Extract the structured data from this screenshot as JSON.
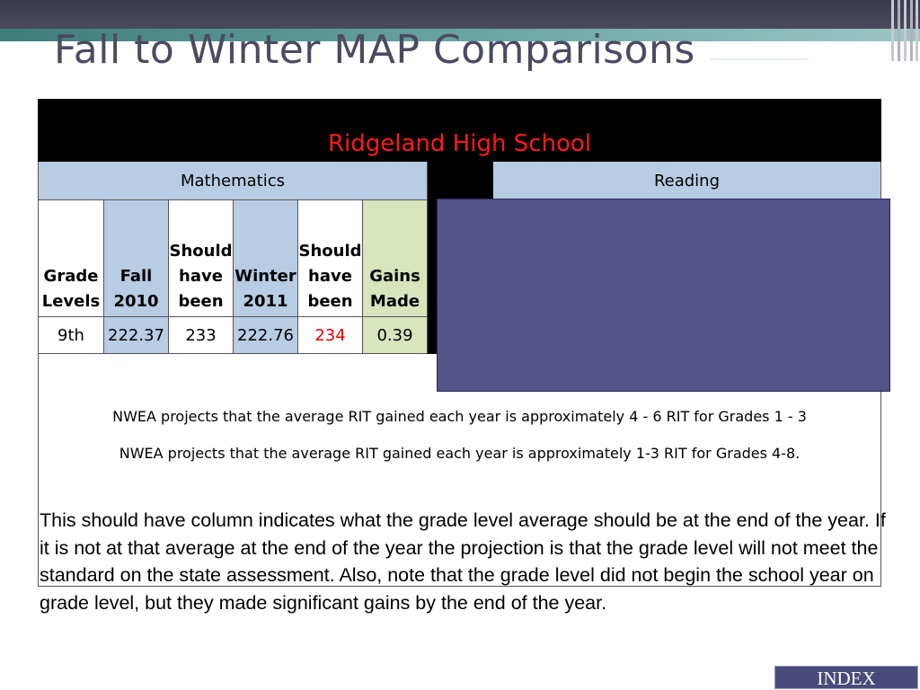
{
  "slide": {
    "title": "Fall to Winter MAP Comparisons"
  },
  "table": {
    "school": "Ridgeland High School",
    "subjects": [
      "Mathematics",
      "Reading"
    ],
    "columns": [
      [
        "Grade",
        "Levels"
      ],
      [
        "Fall",
        "2010"
      ],
      [
        "Should",
        "have",
        "been"
      ],
      [
        "Winter",
        "2011"
      ],
      [
        "Should",
        "have",
        "been"
      ],
      [
        "Gains",
        "Made"
      ]
    ],
    "row": {
      "grade": "9th",
      "fall": "222.37",
      "should_fall": "233",
      "winter": "222.76",
      "should_winter": "234",
      "gains": "0.39"
    },
    "notes": [
      "NWEA projects that the average RIT gained each year is approximately 4 - 6 RIT for Grades 1 - 3",
      "NWEA projects that the average RIT gained each year is approximately 1-3 RIT for Grades 4-8."
    ]
  },
  "caption": "This should have column indicates what the grade level average should be at the end of the year.  If it is not at that average at the end of the year the projection is that the grade level will not meet the standard on the state assessment.   Also, note that the grade level did not begin the school year on grade level, but they made significant gains by the end of the year.",
  "nav": {
    "index_label": "INDEX"
  },
  "colors": {
    "title": "#4a4a62",
    "school_name": "#ff1a1a",
    "header_blue": "#b8cce4",
    "header_green": "#d7e4bc",
    "overlay": "#545289",
    "highlight_red": "#e00000"
  }
}
